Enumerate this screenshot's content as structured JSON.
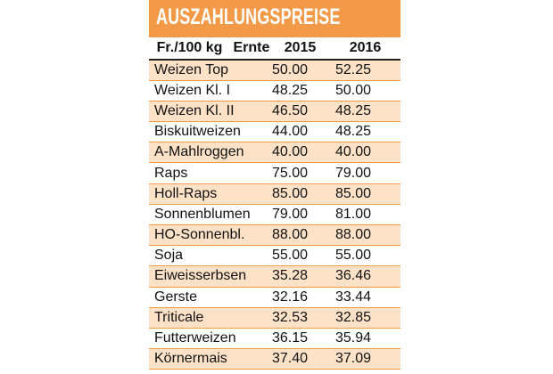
{
  "title": "AUSZAHLUNGSPREISE",
  "header": {
    "unit": "Fr./100 kg",
    "harvest": "Ernte",
    "year1": "2015",
    "year2": "2016"
  },
  "rows": [
    {
      "name": "Weizen Top",
      "v2015": "50.00",
      "v2016": "52.25"
    },
    {
      "name": "Weizen Kl. I",
      "v2015": "48.25",
      "v2016": "50.00"
    },
    {
      "name": "Weizen Kl. II",
      "v2015": "46.50",
      "v2016": "48.25"
    },
    {
      "name": "Biskuitweizen",
      "v2015": "44.00",
      "v2016": "48.25"
    },
    {
      "name": "A-Mahlroggen",
      "v2015": "40.00",
      "v2016": "40.00"
    },
    {
      "name": "Raps",
      "v2015": "75.00",
      "v2016": "79.00"
    },
    {
      "name": "Holl-Raps",
      "v2015": "85.00",
      "v2016": "85.00"
    },
    {
      "name": "Sonnenblumen",
      "v2015": "79.00",
      "v2016": "81.00"
    },
    {
      "name": "HO-Sonnenbl.",
      "v2015": "88.00",
      "v2016": "88.00"
    },
    {
      "name": "Soja",
      "v2015": "55.00",
      "v2016": "55.00"
    },
    {
      "name": "Eiweisserbsen",
      "v2015": "35.28",
      "v2016": "36.46"
    },
    {
      "name": "Gerste",
      "v2015": "32.16",
      "v2016": "33.44"
    },
    {
      "name": "Triticale",
      "v2015": "32.53",
      "v2016": "32.85"
    },
    {
      "name": "Futterweizen",
      "v2015": "36.15",
      "v2016": "35.94"
    },
    {
      "name": "Körnermais",
      "v2015": "37.40",
      "v2016": "37.09"
    }
  ],
  "colors": {
    "header_bg": "#f29a48",
    "stripe_bg": "#fde2c8",
    "title_text": "#ffffff"
  }
}
